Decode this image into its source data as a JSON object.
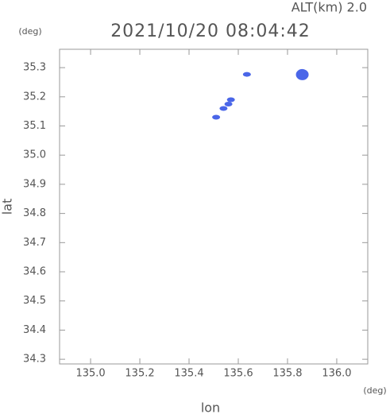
{
  "chart_data": {
    "type": "scatter",
    "altitude": "ALT(km) 2.0",
    "title": "2021/10/20 08:04:42",
    "y_unit": "(deg)",
    "x_unit": "(deg)",
    "xlabel": "lon",
    "ylabel": "lat",
    "x": [
      135.635,
      135.86,
      135.57,
      135.56,
      135.54,
      135.51
    ],
    "series": [
      {
        "color": "#4a66e8",
        "values": [
          35.277,
          35.276,
          35.19,
          35.175,
          35.16,
          35.13
        ]
      }
    ],
    "xlim": [
      134.874,
      136.126
    ],
    "ylim": [
      34.284,
      35.363
    ],
    "xticks": [
      {
        "value": 135,
        "label": "135.0"
      },
      135.2,
      135.4,
      135.6,
      135.8,
      {
        "value": 136,
        "label": "136.0"
      }
    ],
    "yticks": [
      34.3,
      34.4,
      34.5,
      34.6,
      34.7,
      34.8,
      34.9,
      {
        "value": 35,
        "label": "35.0"
      },
      35.1,
      35.2,
      35.3
    ]
  }
}
